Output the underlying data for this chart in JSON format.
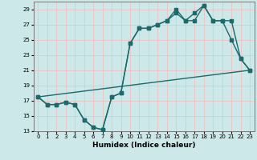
{
  "xlabel": "Humidex (Indice chaleur)",
  "ylabel": "",
  "background_color": "#cce8e8",
  "grid_color": "#f0c0c0",
  "line_color": "#1a6b6b",
  "xlim": [
    -0.5,
    23.5
  ],
  "ylim": [
    13,
    30
  ],
  "yticks": [
    13,
    15,
    17,
    19,
    21,
    23,
    25,
    27,
    29
  ],
  "xticks": [
    0,
    1,
    2,
    3,
    4,
    5,
    6,
    7,
    8,
    9,
    10,
    11,
    12,
    13,
    14,
    15,
    16,
    17,
    18,
    19,
    20,
    21,
    22,
    23
  ],
  "curve1_x": [
    0,
    1,
    2,
    3,
    4,
    5,
    6,
    7,
    8,
    9,
    10,
    11,
    12,
    13,
    14,
    15,
    16,
    17,
    18,
    19,
    20,
    21,
    22,
    23
  ],
  "curve1_y": [
    17.5,
    16.5,
    16.5,
    16.8,
    16.5,
    14.5,
    13.5,
    13.2,
    17.5,
    18.0,
    24.5,
    26.5,
    26.5,
    27.0,
    27.5,
    29.0,
    27.5,
    28.5,
    29.5,
    27.5,
    27.5,
    25.0,
    22.5,
    21.0
  ],
  "curve2_x": [
    0,
    1,
    2,
    3,
    4,
    5,
    6,
    7,
    8,
    9,
    10,
    11,
    12,
    13,
    14,
    15,
    16,
    17,
    18,
    19,
    20,
    21,
    22,
    23
  ],
  "curve2_y": [
    17.5,
    16.5,
    16.5,
    16.8,
    16.5,
    14.5,
    13.5,
    13.2,
    17.5,
    18.0,
    24.5,
    26.5,
    26.5,
    27.0,
    27.5,
    28.5,
    27.5,
    27.5,
    29.5,
    27.5,
    27.5,
    27.5,
    22.5,
    21.0
  ],
  "curve3_x": [
    0,
    23
  ],
  "curve3_y": [
    17.5,
    21.0
  ],
  "marker_size": 2.5,
  "line_width": 1.0
}
